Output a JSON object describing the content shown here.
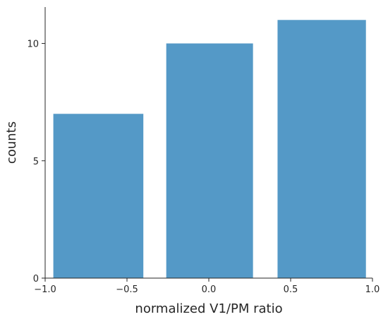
{
  "chart_data": {
    "type": "bar",
    "title": "",
    "xlabel": "normalized V1/PM ratio",
    "ylabel": "counts",
    "xlim": [
      -1.0,
      1.0
    ],
    "ylim": [
      0,
      11.55
    ],
    "x_ticks": [
      -1.0,
      -0.5,
      0.0,
      0.5,
      1.0
    ],
    "x_tick_labels": [
      "−1.0",
      "−0.5",
      "0.0",
      "0.5",
      "1.0"
    ],
    "y_ticks": [
      0,
      5,
      10
    ],
    "y_tick_labels": [
      "0",
      "5",
      "10"
    ],
    "grid": false,
    "legend": "none",
    "bar_color": "#5499c7",
    "bars": [
      {
        "x_start": -0.95,
        "x_end": -0.4,
        "value": 7
      },
      {
        "x_start": -0.26,
        "x_end": 0.27,
        "value": 10
      },
      {
        "x_start": 0.42,
        "x_end": 0.96,
        "value": 11
      }
    ]
  }
}
